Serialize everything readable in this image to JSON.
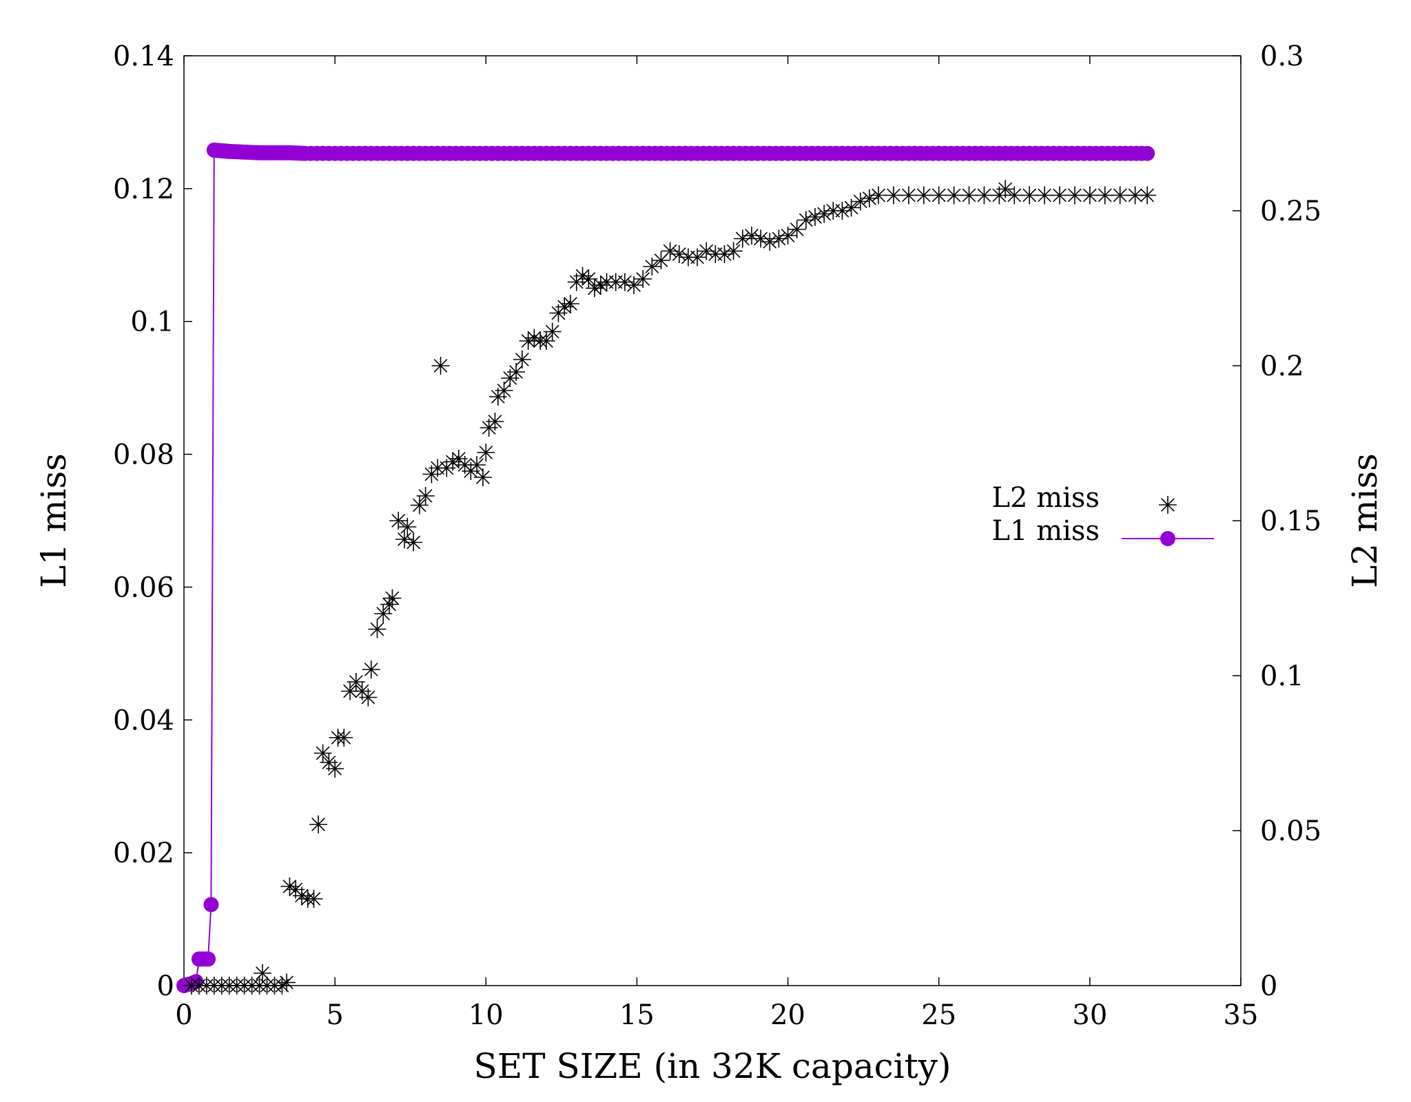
{
  "chart_data": {
    "type": "scatter",
    "title": "",
    "xlabel": "SET SIZE (in 32K capacity)",
    "ylabel": "L1 miss",
    "y2label": "L2 miss",
    "xlim": [
      0,
      35
    ],
    "ylim": [
      0,
      0.14
    ],
    "y2lim": [
      0,
      0.3
    ],
    "xticks": [
      "0",
      "5",
      "10",
      "15",
      "20",
      "25",
      "30",
      "35"
    ],
    "yticks": [
      "0",
      "0.02",
      "0.04",
      "0.06",
      "0.08",
      "0.1",
      "0.12",
      "0.14"
    ],
    "y2ticks": [
      "0",
      "0.05",
      "0.1",
      "0.15",
      "0.2",
      "0.25",
      "0.3"
    ],
    "grid": false,
    "legend_position": "right",
    "colors": {
      "l1": "#9400d3",
      "l2": "#000000",
      "axis": "#000000"
    },
    "series": [
      {
        "name": "L2 miss",
        "axis": "y2",
        "style": "asterisk",
        "points": [
          [
            0.25,
            0.0
          ],
          [
            0.5,
            0.0
          ],
          [
            0.75,
            0.0
          ],
          [
            1.0,
            0.0
          ],
          [
            1.25,
            0.0
          ],
          [
            1.5,
            0.0
          ],
          [
            1.75,
            0.0
          ],
          [
            2.0,
            0.0
          ],
          [
            2.25,
            0.0
          ],
          [
            2.5,
            0.0
          ],
          [
            2.6,
            0.004
          ],
          [
            2.75,
            0.0
          ],
          [
            3.0,
            0.0
          ],
          [
            3.25,
            0.0
          ],
          [
            3.4,
            0.001
          ],
          [
            3.5,
            0.032
          ],
          [
            3.7,
            0.031
          ],
          [
            3.9,
            0.029
          ],
          [
            4.1,
            0.028
          ],
          [
            4.3,
            0.028
          ],
          [
            4.45,
            0.052
          ],
          [
            4.6,
            0.075
          ],
          [
            4.8,
            0.072
          ],
          [
            5.0,
            0.07
          ],
          [
            5.1,
            0.08
          ],
          [
            5.3,
            0.08
          ],
          [
            5.5,
            0.095
          ],
          [
            5.7,
            0.098
          ],
          [
            5.9,
            0.095
          ],
          [
            6.1,
            0.093
          ],
          [
            6.2,
            0.102
          ],
          [
            6.4,
            0.115
          ],
          [
            6.6,
            0.12
          ],
          [
            6.8,
            0.123
          ],
          [
            6.9,
            0.125
          ],
          [
            7.1,
            0.15
          ],
          [
            7.3,
            0.144
          ],
          [
            7.4,
            0.148
          ],
          [
            7.6,
            0.143
          ],
          [
            7.8,
            0.155
          ],
          [
            8.0,
            0.158
          ],
          [
            8.2,
            0.165
          ],
          [
            8.4,
            0.167
          ],
          [
            8.5,
            0.2
          ],
          [
            8.7,
            0.167
          ],
          [
            8.9,
            0.169
          ],
          [
            9.1,
            0.17
          ],
          [
            9.3,
            0.168
          ],
          [
            9.5,
            0.166
          ],
          [
            9.7,
            0.168
          ],
          [
            9.9,
            0.164
          ],
          [
            10.0,
            0.172
          ],
          [
            10.1,
            0.18
          ],
          [
            10.3,
            0.182
          ],
          [
            10.4,
            0.19
          ],
          [
            10.6,
            0.192
          ],
          [
            10.8,
            0.196
          ],
          [
            11.0,
            0.198
          ],
          [
            11.2,
            0.202
          ],
          [
            11.4,
            0.208
          ],
          [
            11.6,
            0.209
          ],
          [
            11.8,
            0.208
          ],
          [
            12.0,
            0.208
          ],
          [
            12.2,
            0.211
          ],
          [
            12.4,
            0.217
          ],
          [
            12.6,
            0.219
          ],
          [
            12.8,
            0.22
          ],
          [
            13.0,
            0.227
          ],
          [
            13.2,
            0.229
          ],
          [
            13.4,
            0.228
          ],
          [
            13.6,
            0.225
          ],
          [
            13.8,
            0.226
          ],
          [
            14.0,
            0.227
          ],
          [
            14.3,
            0.227
          ],
          [
            14.6,
            0.227
          ],
          [
            14.9,
            0.226
          ],
          [
            15.2,
            0.228
          ],
          [
            15.5,
            0.232
          ],
          [
            15.8,
            0.234
          ],
          [
            16.1,
            0.237
          ],
          [
            16.4,
            0.236
          ],
          [
            16.7,
            0.235
          ],
          [
            17.0,
            0.235
          ],
          [
            17.3,
            0.237
          ],
          [
            17.6,
            0.236
          ],
          [
            17.9,
            0.236
          ],
          [
            18.2,
            0.237
          ],
          [
            18.5,
            0.241
          ],
          [
            18.8,
            0.242
          ],
          [
            19.1,
            0.241
          ],
          [
            19.4,
            0.24
          ],
          [
            19.7,
            0.241
          ],
          [
            20.0,
            0.242
          ],
          [
            20.3,
            0.244
          ],
          [
            20.6,
            0.247
          ],
          [
            20.9,
            0.248
          ],
          [
            21.2,
            0.249
          ],
          [
            21.5,
            0.25
          ],
          [
            21.8,
            0.25
          ],
          [
            22.1,
            0.251
          ],
          [
            22.4,
            0.253
          ],
          [
            22.7,
            0.254
          ],
          [
            23.0,
            0.255
          ],
          [
            23.5,
            0.255
          ],
          [
            24.0,
            0.255
          ],
          [
            24.5,
            0.255
          ],
          [
            25.0,
            0.255
          ],
          [
            25.5,
            0.255
          ],
          [
            26.0,
            0.255
          ],
          [
            26.5,
            0.255
          ],
          [
            27.0,
            0.255
          ],
          [
            27.2,
            0.257
          ],
          [
            27.5,
            0.255
          ],
          [
            28.0,
            0.255
          ],
          [
            28.5,
            0.255
          ],
          [
            29.0,
            0.255
          ],
          [
            29.5,
            0.255
          ],
          [
            30.0,
            0.255
          ],
          [
            30.5,
            0.255
          ],
          [
            31.0,
            0.255
          ],
          [
            31.5,
            0.255
          ],
          [
            31.9,
            0.255
          ]
        ]
      },
      {
        "name": "L1 miss",
        "axis": "y",
        "style": "line-circle",
        "points": [
          [
            0.0,
            0.0
          ],
          [
            0.15,
            0.0002
          ],
          [
            0.3,
            0.0004
          ],
          [
            0.4,
            0.0006
          ],
          [
            0.5,
            0.004
          ],
          [
            0.6,
            0.004
          ],
          [
            0.7,
            0.004
          ],
          [
            0.8,
            0.004
          ],
          [
            0.9,
            0.0122
          ],
          [
            1.0,
            0.1258
          ],
          [
            1.25,
            0.1257
          ],
          [
            1.5,
            0.1256
          ],
          [
            2.0,
            0.1255
          ],
          [
            2.5,
            0.1254
          ],
          [
            3.0,
            0.1254
          ],
          [
            3.5,
            0.1254
          ],
          [
            4.0,
            0.1253
          ],
          [
            5.0,
            0.1253
          ],
          [
            6.0,
            0.1253
          ],
          [
            7.0,
            0.1253
          ],
          [
            8.0,
            0.1253
          ],
          [
            9.0,
            0.1253
          ],
          [
            10.0,
            0.1253
          ],
          [
            11.0,
            0.1253
          ],
          [
            12.0,
            0.1253
          ],
          [
            13.0,
            0.1253
          ],
          [
            14.0,
            0.1253
          ],
          [
            15.0,
            0.1253
          ],
          [
            16.0,
            0.1253
          ],
          [
            17.0,
            0.1253
          ],
          [
            18.0,
            0.1253
          ],
          [
            19.0,
            0.1253
          ],
          [
            20.0,
            0.1253
          ],
          [
            21.0,
            0.1253
          ],
          [
            22.0,
            0.1253
          ],
          [
            23.0,
            0.1253
          ],
          [
            24.0,
            0.1253
          ],
          [
            25.0,
            0.1253
          ],
          [
            26.0,
            0.1253
          ],
          [
            27.0,
            0.1253
          ],
          [
            28.0,
            0.1253
          ],
          [
            29.0,
            0.1253
          ],
          [
            30.0,
            0.1253
          ],
          [
            31.0,
            0.1253
          ],
          [
            31.9,
            0.1253
          ]
        ]
      }
    ]
  }
}
